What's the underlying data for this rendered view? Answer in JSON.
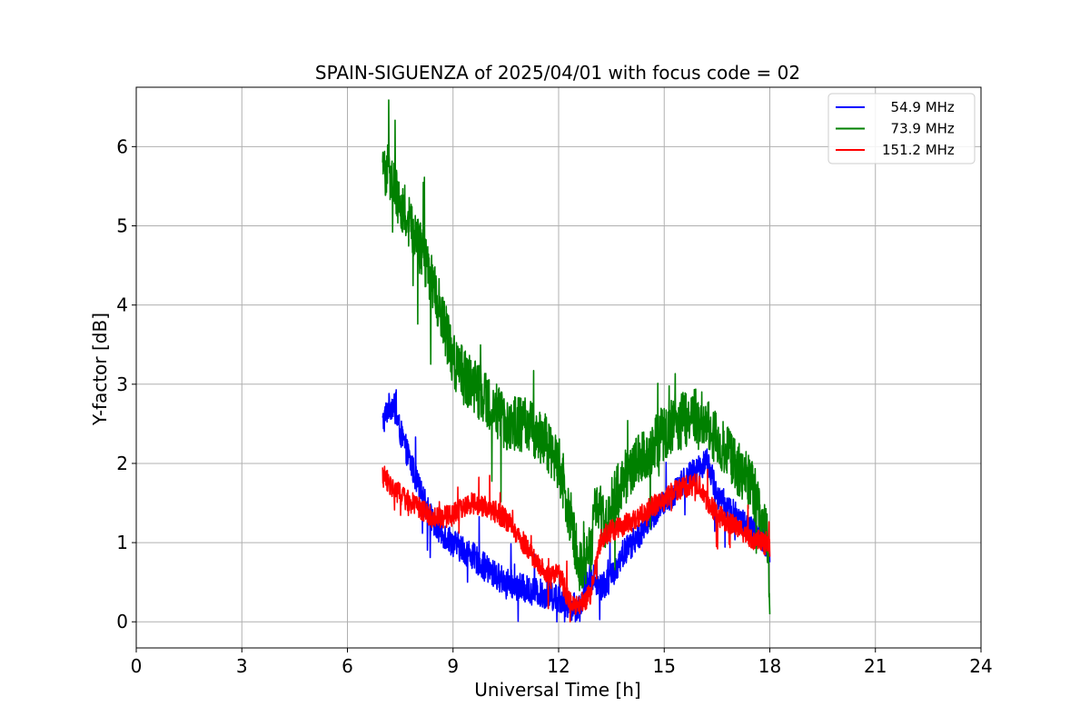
{
  "chart_data": {
    "type": "line",
    "title": "SPAIN-SIGUENZA of 2025/04/01 with focus code = 02",
    "xlabel": "Universal Time [h]",
    "ylabel": "Y-factor [dB]",
    "xlim": [
      0,
      24
    ],
    "ylim": [
      -0.33,
      6.75
    ],
    "xticks": [
      0,
      3,
      6,
      9,
      12,
      15,
      18,
      21,
      24
    ],
    "yticks": [
      0,
      1,
      2,
      3,
      4,
      5,
      6
    ],
    "grid": true,
    "legend_position": "upper right",
    "series": [
      {
        "name": "  54.9 MHz",
        "color": "#0000ff",
        "noise": 0.18,
        "x": [
          7.0,
          7.15,
          7.3,
          7.5,
          7.8,
          8.1,
          8.5,
          9.0,
          9.5,
          10.0,
          10.5,
          11.0,
          11.5,
          12.0,
          12.3,
          12.6,
          12.9,
          13.2,
          13.5,
          13.8,
          14.2,
          14.6,
          15.0,
          15.5,
          16.0,
          16.2,
          16.5,
          17.0,
          17.5,
          18.0
        ],
        "y": [
          2.5,
          2.7,
          2.75,
          2.4,
          2.0,
          1.6,
          1.2,
          1.0,
          0.85,
          0.65,
          0.5,
          0.42,
          0.36,
          0.3,
          0.2,
          0.18,
          0.6,
          0.45,
          0.55,
          0.85,
          1.05,
          1.3,
          1.5,
          1.75,
          1.95,
          2.05,
          1.6,
          1.35,
          1.15,
          0.9
        ]
      },
      {
        "name": "  73.9 MHz",
        "color": "#008000",
        "noise": 0.35,
        "x": [
          7.0,
          7.15,
          7.3,
          7.6,
          8.0,
          8.3,
          8.6,
          9.0,
          9.5,
          10.0,
          10.5,
          11.0,
          11.3,
          11.6,
          12.0,
          12.3,
          12.6,
          12.9,
          13.1,
          13.3,
          13.6,
          14.0,
          14.5,
          15.0,
          15.5,
          16.0,
          16.2,
          16.5,
          17.0,
          17.5,
          17.9,
          18.0
        ],
        "y": [
          5.6,
          5.8,
          5.5,
          5.2,
          4.8,
          4.4,
          4.0,
          3.3,
          3.0,
          2.8,
          2.5,
          2.5,
          2.4,
          2.3,
          2.0,
          1.4,
          0.7,
          0.9,
          1.6,
          1.2,
          1.6,
          1.9,
          2.1,
          2.4,
          2.55,
          2.6,
          2.5,
          2.3,
          2.0,
          1.7,
          1.2,
          0.4
        ]
      },
      {
        "name": "151.2 MHz",
        "color": "#ff0000",
        "noise": 0.14,
        "x": [
          7.0,
          7.2,
          7.5,
          8.0,
          8.5,
          9.0,
          9.3,
          9.6,
          10.0,
          10.5,
          11.0,
          11.5,
          11.8,
          12.0,
          12.3,
          12.6,
          12.9,
          13.2,
          13.5,
          14.0,
          14.5,
          15.0,
          15.5,
          16.0,
          16.2,
          16.5,
          17.0,
          17.5,
          18.0
        ],
        "y": [
          1.85,
          1.75,
          1.6,
          1.45,
          1.3,
          1.35,
          1.45,
          1.5,
          1.45,
          1.3,
          1.0,
          0.7,
          0.55,
          0.65,
          0.25,
          0.22,
          0.35,
          1.05,
          1.15,
          1.25,
          1.4,
          1.55,
          1.7,
          1.75,
          1.55,
          1.35,
          1.2,
          1.05,
          0.95
        ]
      }
    ]
  }
}
